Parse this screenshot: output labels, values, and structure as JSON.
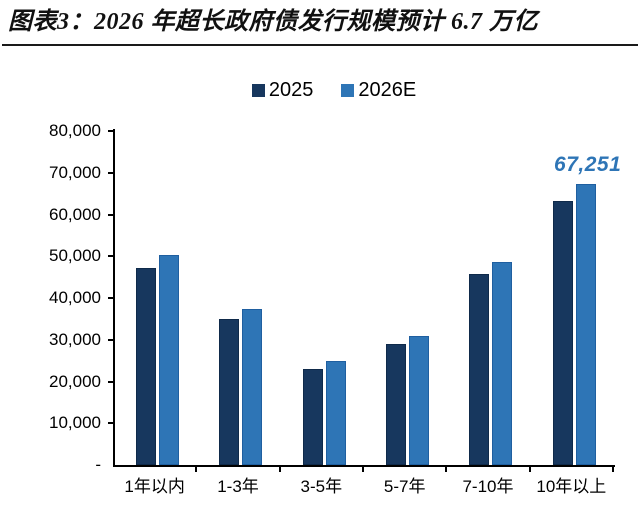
{
  "header": {
    "title": "图表3：2026 年超长政府债发行规模预计 6.7 万亿"
  },
  "legend": {
    "items": [
      {
        "label": "2025",
        "color": "#17375E"
      },
      {
        "label": "2026E",
        "color": "#2E75B6"
      }
    ]
  },
  "colors": {
    "series_2025": "#17375E",
    "series_2026e": "#2E75B6",
    "annotation": "#2E75B6",
    "axis": "#000000",
    "title_rule": "#1a1a1a"
  },
  "chart_data": {
    "type": "bar",
    "title": "图表3：2026 年超长政府债发行规模预计 6.7 万亿",
    "categories": [
      "1年以内",
      "1-3年",
      "3-5年",
      "5-7年",
      "7-10年",
      "10年以上"
    ],
    "series": [
      {
        "name": "2025",
        "color": "#17375E",
        "border": "#0F2A4A",
        "values": [
          47300,
          35000,
          23100,
          29000,
          45700,
          63300
        ]
      },
      {
        "name": "2026E",
        "color": "#2E75B6",
        "border": "#1F5FA0",
        "values": [
          50200,
          37400,
          24800,
          31000,
          48700,
          67251
        ]
      }
    ],
    "xlabel": "",
    "ylabel": "",
    "ylim": [
      0,
      80000
    ],
    "grid": false,
    "legend_position": "top",
    "yticks": [
      {
        "label": "80,000",
        "value": 80000
      },
      {
        "label": "70,000",
        "value": 70000
      },
      {
        "label": "60,000",
        "value": 60000
      },
      {
        "label": "50,000",
        "value": 50000
      },
      {
        "label": "40,000",
        "value": 40000
      },
      {
        "label": "30,000",
        "value": 30000
      },
      {
        "label": "20,000",
        "value": 20000
      },
      {
        "label": "10,000",
        "value": 10000
      },
      {
        "label": "-",
        "value": 0
      }
    ],
    "annotation": {
      "text": "67,251",
      "series": "2026E",
      "category": "10年以上",
      "color": "#2E75B6"
    }
  }
}
